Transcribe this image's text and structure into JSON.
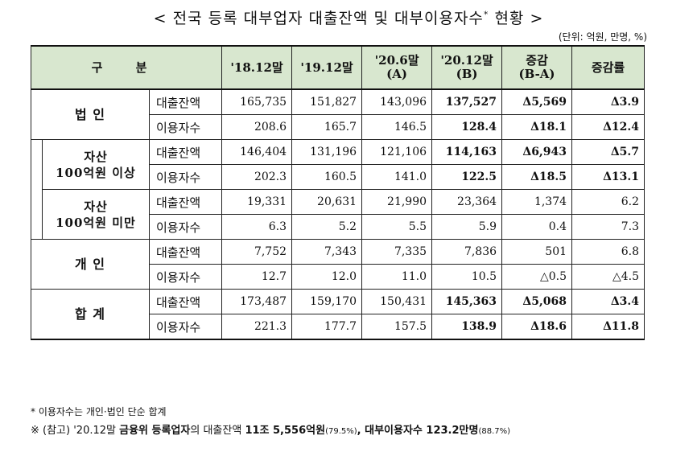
{
  "title": "< 전국 등록 대부업자 대출잔액 및 대부이용자수",
  "title_mark": "*",
  "title_end": "현황 >",
  "unit": "(단위: 억원, 만명, %)",
  "header": {
    "category": "구 분",
    "col1": "'18.12말",
    "col2": "'19.12말",
    "col3_line1": "'20.6말",
    "col3_line2": "(A)",
    "col4_line1": "'20.12말",
    "col4_line2": "(B)",
    "col5_line1": "증감",
    "col5_line2": "(B-A)",
    "col6": "증감률"
  },
  "rows": [
    {
      "cat1": "법 인",
      "cat2": "",
      "sub": "대출잔액",
      "v": [
        "165,735",
        "151,827",
        "143,096",
        "137,527",
        "Δ5,569",
        "Δ3.9"
      ]
    },
    {
      "sub": "이용자수",
      "v": [
        "208.6",
        "165.7",
        "146.5",
        "128.4",
        "Δ18.1",
        "Δ12.4"
      ]
    },
    {
      "cat1": "자산",
      "cat2": "100억원 이상",
      "sub": "대출잔액",
      "v": [
        "146,404",
        "131,196",
        "121,106",
        "114,163",
        "Δ6,943",
        "Δ5.7"
      ]
    },
    {
      "sub": "이용자수",
      "v": [
        "202.3",
        "160.5",
        "141.0",
        "122.5",
        "Δ18.5",
        "Δ13.1"
      ]
    },
    {
      "cat1": "자산",
      "cat2": "100억원 미만",
      "sub": "대출잔액",
      "v": [
        "19,331",
        "20,631",
        "21,990",
        "23,364",
        "1,374",
        "6.2"
      ]
    },
    {
      "sub": "이용자수",
      "v": [
        "6.3",
        "5.2",
        "5.5",
        "5.9",
        "0.4",
        "7.3"
      ]
    },
    {
      "cat1": "개 인",
      "cat2": "",
      "sub": "대출잔액",
      "v": [
        "7,752",
        "7,343",
        "7,335",
        "7,836",
        "501",
        "6.8"
      ]
    },
    {
      "sub": "이용자수",
      "v": [
        "12.7",
        "12.0",
        "11.0",
        "10.5",
        "△0.5",
        "△4.5"
      ]
    },
    {
      "cat1": "합 계",
      "cat2": "",
      "sub": "대출잔액",
      "v": [
        "173,487",
        "159,170",
        "150,431",
        "145,363",
        "Δ5,068",
        "Δ3.4"
      ]
    },
    {
      "sub": "이용자수",
      "v": [
        "221.3",
        "177.7",
        "157.5",
        "138.9",
        "Δ18.6",
        "Δ11.8"
      ]
    }
  ],
  "notes": {
    "note1": "* 이용자수는 개인·법인 단순 합계",
    "note2_a": "※ (참고) '20.12말 ",
    "note2_b": "금융위 등록업자",
    "note2_c": "의 대출잔액 ",
    "note2_d": "11조 5,556억원",
    "note2_e": "(79.5%)",
    "note2_f": ", 대부이용자수 ",
    "note2_g": "123.2만명",
    "note2_h": "(88.7%)"
  }
}
